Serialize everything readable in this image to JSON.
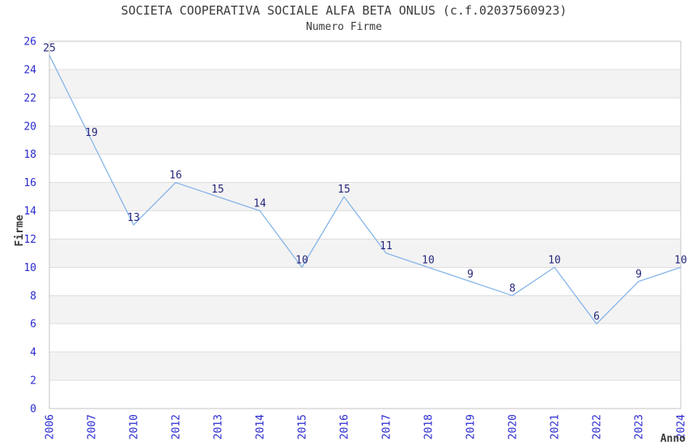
{
  "chart_data": {
    "type": "line",
    "title": "SOCIETA COOPERATIVA SOCIALE ALFA BETA ONLUS (c.f.02037560923)",
    "subtitle": "Numero Firme",
    "xlabel": "Anno",
    "ylabel": "Firme",
    "categories": [
      "2006",
      "2007",
      "2010",
      "2012",
      "2013",
      "2014",
      "2015",
      "2016",
      "2017",
      "2018",
      "2019",
      "2020",
      "2021",
      "2022",
      "2023",
      "2024"
    ],
    "values": [
      25,
      19,
      13,
      16,
      15,
      14,
      10,
      15,
      11,
      10,
      9,
      8,
      10,
      6,
      9,
      10
    ],
    "ylim": [
      0,
      26
    ],
    "ytick_step": 2,
    "yticks": [
      0,
      2,
      4,
      6,
      8,
      10,
      12,
      14,
      16,
      18,
      20,
      22,
      24,
      26
    ],
    "grid": true,
    "alternating_bands": true,
    "point_labels": true,
    "legend": "none",
    "x_tick_rotation_deg": -90
  },
  "colors": {
    "background": "#ffffff",
    "figure_title": "#3b3b3b",
    "axis_title": "#3b3b3b",
    "tick_label": "#2a2ad0",
    "point_label": "#28287d",
    "series_line": "#85b5e8",
    "band_fill": "#f3f3f3",
    "grid_line": "#dedede",
    "plot_border": "#c6c6c6"
  }
}
